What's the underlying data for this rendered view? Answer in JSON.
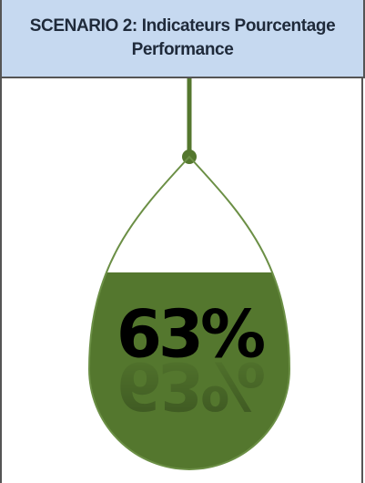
{
  "chart_data": {
    "type": "liquid",
    "title": "SCENARIO 2: Indicateurs Pourcentage Performance",
    "values": [
      63
    ],
    "value_labels": [
      "63%"
    ],
    "ylim": [
      0,
      100
    ],
    "color": "#54772e"
  }
}
